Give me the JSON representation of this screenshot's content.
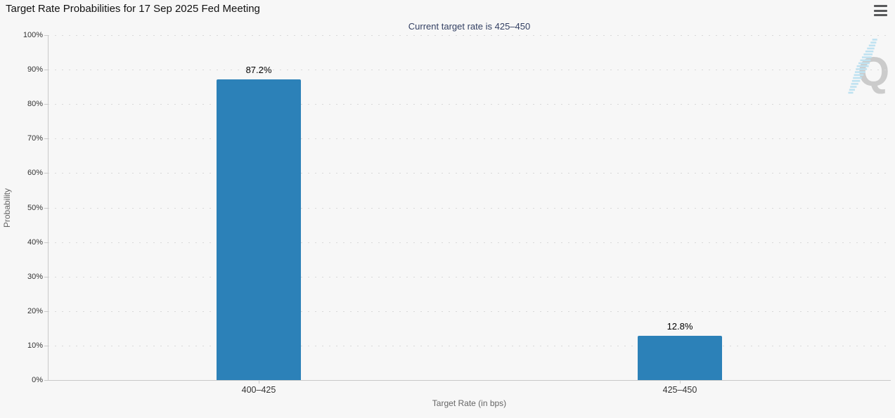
{
  "header": {
    "title": "Target Rate Probabilities for 17 Sep 2025 Fed Meeting",
    "menu_icon": "hamburger-menu-icon"
  },
  "chart_data": {
    "type": "bar",
    "title": "Target Rate Probabilities for 17 Sep 2025 Fed Meeting",
    "subtitle": "Current target rate is 425–450",
    "categories": [
      "400–425",
      "425–450"
    ],
    "values": [
      87.2,
      12.8
    ],
    "data_labels": [
      "87.2%",
      "12.8%"
    ],
    "xlabel": "Target Rate (in bps)",
    "ylabel": "Probability",
    "ylim": [
      0,
      100
    ],
    "ytick_step": 10,
    "ytick_labels": [
      "0%",
      "10%",
      "20%",
      "30%",
      "40%",
      "50%",
      "60%",
      "70%",
      "80%",
      "90%",
      "100%"
    ],
    "grid": "dotted-horizontal",
    "legend": "none",
    "bar_color": "#2c81b8"
  },
  "colors": {
    "background": "#f7f7f7",
    "bar": "#2c81b8",
    "subtitle_text": "#334063",
    "axis_line": "#c9c9c9",
    "gridline": "#d9d9d9",
    "label_text": "#333333",
    "axis_title_text": "#666666",
    "watermark_letter": "#c7c7c7",
    "watermark_hatch": "#b9e0f1"
  },
  "watermark": {
    "letter": "Q"
  }
}
